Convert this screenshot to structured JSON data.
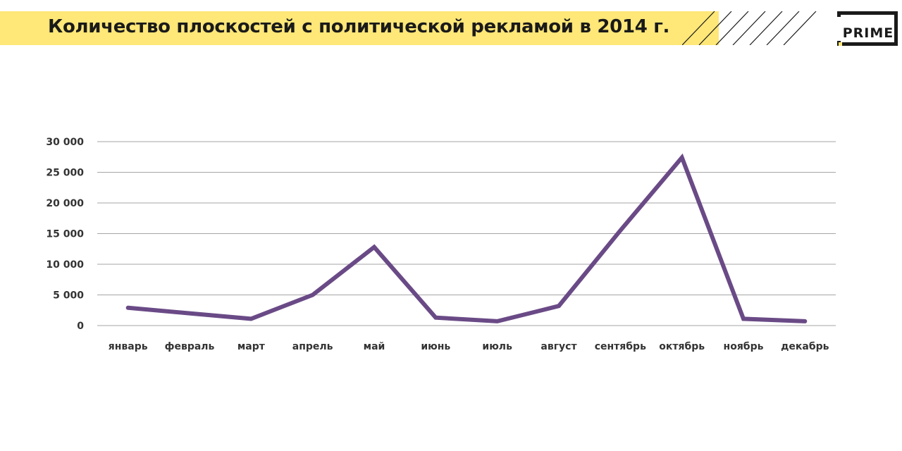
{
  "header": {
    "title": "Количество плоскостей с политической рекламой в 2014 г.",
    "logo_text": "PRIME"
  },
  "colors": {
    "title_bar": "#ffe778",
    "line": "#6a4a86",
    "grid": "#a6a6a6",
    "logo": "#1a1a1a"
  },
  "chart_data": {
    "type": "line",
    "title": "Количество плоскостей с политической рекламой в 2014 г.",
    "categories": [
      "январь",
      "февраль",
      "март",
      "апрель",
      "май",
      "июнь",
      "июль",
      "август",
      "сентябрь",
      "октябрь",
      "ноябрь",
      "декабрь"
    ],
    "series": [
      {
        "values": [
          2900,
          2000,
          1100,
          5000,
          12800,
          1300,
          700,
          3200,
          15500,
          27400,
          1100,
          700
        ]
      }
    ],
    "yticks": [
      "0",
      "5 000",
      "10 000",
      "15 000",
      "20 000",
      "25 000",
      "30 000"
    ],
    "ylim": [
      0,
      30000
    ],
    "grid": true,
    "legend": "none",
    "xlabel": "",
    "ylabel": ""
  }
}
